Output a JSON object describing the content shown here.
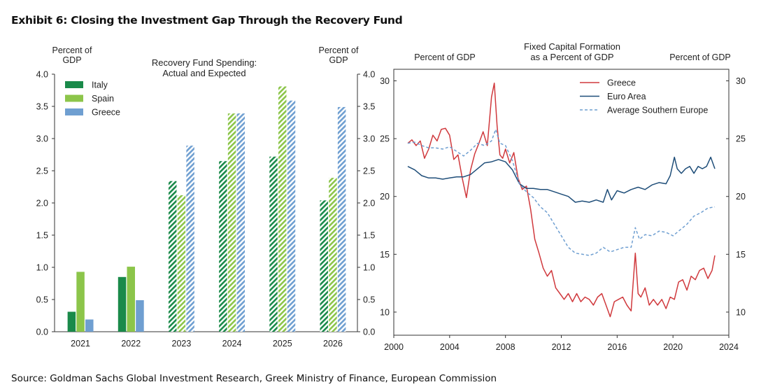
{
  "title": "Exhibit 6: Closing the Investment Gap Through the Recovery Fund",
  "source": "Source: Goldman Sachs Global Investment Research, Greek Ministry of Finance, European Commission",
  "colors": {
    "italy": "#1a8a4a",
    "spain": "#8cc54a",
    "greece_bar": "#6f9fd1",
    "greece_line": "#d0393d",
    "euro_area": "#1f4e79",
    "avg_southern": "#6f9fd1"
  },
  "chart_data": [
    {
      "type": "bar",
      "title": "Recovery Fund Spending:",
      "subtitle": "Actual and Expected",
      "ylabel_left": "Percent of\nGDP",
      "ylabel_right": "Percent of\nGDP",
      "ylim": [
        0,
        4.0
      ],
      "yticks": [
        "0.0",
        "0.5",
        "1.0",
        "1.5",
        "2.0",
        "2.5",
        "3.0",
        "3.5",
        "4.0"
      ],
      "categories": [
        "2021",
        "2022",
        "2023",
        "2024",
        "2025",
        "2026"
      ],
      "hatched_from_index": 2,
      "legend_placement": "top-left",
      "series": [
        {
          "name": "Italy",
          "values": [
            0.31,
            0.85,
            2.34,
            2.65,
            2.72,
            2.04
          ]
        },
        {
          "name": "Spain",
          "values": [
            0.93,
            1.01,
            2.12,
            3.39,
            3.81,
            2.39
          ]
        },
        {
          "name": "Greece",
          "values": [
            0.19,
            0.49,
            2.89,
            3.39,
            3.59,
            3.49
          ]
        }
      ]
    },
    {
      "type": "line",
      "title": "Fixed Capital Formation",
      "subtitle": "as a Percent of GDP",
      "ylabel_left": "Percent of GDP",
      "ylabel_right": "Percent of GDP",
      "xlim": [
        2000,
        2024
      ],
      "ylim": [
        8,
        31
      ],
      "xticks": [
        "2000",
        "2004",
        "2008",
        "2012",
        "2016",
        "2020",
        "2024"
      ],
      "yticks": [
        "10",
        "15",
        "20",
        "25",
        "30"
      ],
      "legend_placement": "top-center",
      "series": [
        {
          "name": "Greece",
          "x": [
            2001.0,
            2001.3,
            2001.6,
            2001.9,
            2002.2,
            2002.5,
            2002.8,
            2003.1,
            2003.4,
            2003.7,
            2004.0,
            2004.3,
            2004.6,
            2004.9,
            2005.2,
            2005.5,
            2005.8,
            2006.1,
            2006.4,
            2006.7,
            2007.0,
            2007.2,
            2007.4,
            2007.6,
            2007.8,
            2008.0,
            2008.3,
            2008.6,
            2008.9,
            2009.2,
            2009.5,
            2009.8,
            2010.1,
            2010.4,
            2010.7,
            2011.0,
            2011.3,
            2011.6,
            2011.9,
            2012.2,
            2012.5,
            2012.8,
            2013.1,
            2013.4,
            2013.7,
            2014.0,
            2014.3,
            2014.6,
            2014.9,
            2015.2,
            2015.5,
            2015.8,
            2016.1,
            2016.4,
            2016.7,
            2017.0,
            2017.3,
            2017.5,
            2017.7,
            2018.0,
            2018.3,
            2018.6,
            2018.9,
            2019.2,
            2019.5,
            2019.8,
            2020.1,
            2020.4,
            2020.7,
            2021.0,
            2021.3,
            2021.6,
            2021.9,
            2022.2,
            2022.5,
            2022.8,
            2023.0
          ],
          "y": [
            24.6,
            24.9,
            24.4,
            24.8,
            23.3,
            24.1,
            25.3,
            24.8,
            25.8,
            25.9,
            25.3,
            23.2,
            23.6,
            21.6,
            19.9,
            22.3,
            23.7,
            24.6,
            25.6,
            24.4,
            28.6,
            29.8,
            26.1,
            23.6,
            23.3,
            24.1,
            22.9,
            23.8,
            21.6,
            20.6,
            20.9,
            18.9,
            16.3,
            15.1,
            13.8,
            13.1,
            13.6,
            12.1,
            11.6,
            11.1,
            11.6,
            10.9,
            11.6,
            10.9,
            11.3,
            11.1,
            10.6,
            11.3,
            11.6,
            10.6,
            9.6,
            10.9,
            11.1,
            11.3,
            10.6,
            10.1,
            15.1,
            11.6,
            11.3,
            12.1,
            10.6,
            11.1,
            10.6,
            11.1,
            10.3,
            11.3,
            11.1,
            12.6,
            12.8,
            11.9,
            13.1,
            12.8,
            13.6,
            13.8,
            12.9,
            13.6,
            14.9
          ]
        },
        {
          "name": "Euro Area",
          "x": [
            2001.0,
            2001.5,
            2002.0,
            2002.5,
            2003.0,
            2003.5,
            2004.0,
            2004.5,
            2005.0,
            2005.5,
            2006.0,
            2006.5,
            2007.0,
            2007.5,
            2008.0,
            2008.5,
            2009.0,
            2009.5,
            2010.0,
            2010.5,
            2011.0,
            2011.5,
            2012.0,
            2012.5,
            2013.0,
            2013.5,
            2014.0,
            2014.5,
            2015.0,
            2015.3,
            2015.6,
            2016.0,
            2016.5,
            2017.0,
            2017.5,
            2018.0,
            2018.5,
            2019.0,
            2019.5,
            2019.8,
            2020.1,
            2020.3,
            2020.6,
            2020.9,
            2021.2,
            2021.5,
            2021.8,
            2022.1,
            2022.4,
            2022.7,
            2023.0
          ],
          "y": [
            22.6,
            22.3,
            21.8,
            21.6,
            21.6,
            21.5,
            21.6,
            21.7,
            21.7,
            21.9,
            22.4,
            22.9,
            23.0,
            23.2,
            23.0,
            22.3,
            21.1,
            20.7,
            20.7,
            20.6,
            20.6,
            20.4,
            20.2,
            20.0,
            19.5,
            19.6,
            19.5,
            19.7,
            19.5,
            20.6,
            19.7,
            20.5,
            20.3,
            20.6,
            20.8,
            20.6,
            21.0,
            21.2,
            21.1,
            21.8,
            23.4,
            22.4,
            22.0,
            22.4,
            22.6,
            22.0,
            22.6,
            22.4,
            22.6,
            23.4,
            22.4
          ]
        },
        {
          "name": "Average Southern Europe",
          "x": [
            2001.0,
            2001.5,
            2002.0,
            2002.5,
            2003.0,
            2003.5,
            2004.0,
            2004.5,
            2005.0,
            2005.5,
            2006.0,
            2006.5,
            2007.0,
            2007.3,
            2007.6,
            2008.0,
            2008.5,
            2009.0,
            2009.5,
            2010.0,
            2010.5,
            2011.0,
            2011.5,
            2012.0,
            2012.5,
            2013.0,
            2013.5,
            2014.0,
            2014.5,
            2015.0,
            2015.5,
            2016.0,
            2016.5,
            2017.0,
            2017.3,
            2017.6,
            2018.0,
            2018.5,
            2019.0,
            2019.5,
            2020.0,
            2020.5,
            2021.0,
            2021.5,
            2022.0,
            2022.5,
            2023.0
          ],
          "y": [
            24.6,
            24.7,
            24.4,
            24.2,
            24.2,
            24.1,
            24.3,
            23.9,
            23.5,
            24.0,
            24.6,
            24.4,
            24.8,
            25.8,
            24.6,
            24.4,
            23.1,
            21.1,
            20.4,
            19.9,
            19.1,
            18.6,
            17.6,
            16.6,
            15.6,
            15.1,
            15.0,
            14.9,
            15.1,
            15.6,
            15.2,
            15.4,
            15.6,
            15.6,
            17.3,
            16.3,
            16.7,
            16.6,
            17.0,
            16.9,
            16.6,
            17.1,
            17.6,
            18.3,
            18.6,
            19.0,
            19.1
          ]
        }
      ]
    }
  ]
}
